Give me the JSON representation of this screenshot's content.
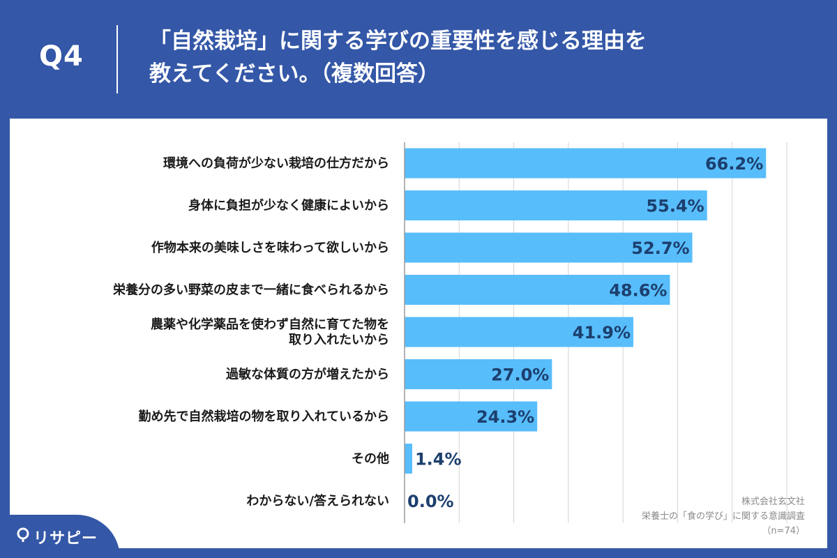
{
  "header": {
    "qnum": "Q4",
    "title": "「自然栽培」に関する学びの重要性を感じる理由を\n教えてください。（複数回答）"
  },
  "source": {
    "line1": "株式会社玄文社",
    "line2": "栄養士の「食の学び」に関する意識調査",
    "line3": "（n=74）"
  },
  "logo": {
    "text": "リサピー"
  },
  "colors": {
    "bar": "#58bdfb",
    "label": "#1c3f6e",
    "accent": "#3457a7",
    "grid": "#d3d3d3"
  },
  "chart_data": {
    "type": "bar",
    "orientation": "horizontal",
    "categories": [
      "環境への負荷が少ない栽培の仕方だから",
      "身体に負担が少なく健康によいから",
      "作物本来の美味しさを味わって欲しいから",
      "栄養分の多い野菜の皮まで一緒に食べられるから",
      "農薬や化学薬品を使わず自然に育てた物を\n取り入れたいから",
      "過敏な体質の方が増えたから",
      "勤め先で自然栽培の物を取り入れているから",
      "その他",
      "わからない/答えられない"
    ],
    "values": [
      66.2,
      55.4,
      52.7,
      48.6,
      41.9,
      27.0,
      24.3,
      1.4,
      0.0
    ],
    "value_labels": [
      "66.2%",
      "55.4%",
      "52.7%",
      "48.6%",
      "41.9%",
      "27.0%",
      "24.3%",
      "1.4%",
      "0.0%"
    ],
    "xlim": [
      0,
      70
    ],
    "grid": true,
    "legend": "none"
  }
}
